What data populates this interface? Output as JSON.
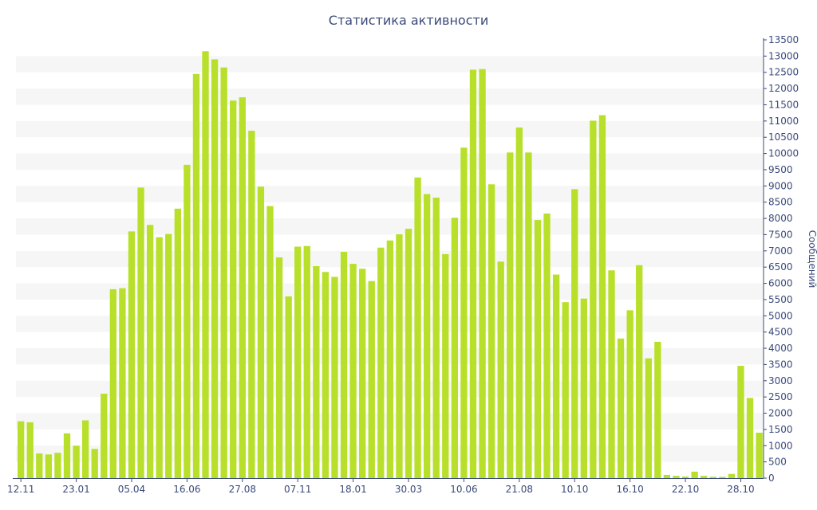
{
  "chart_data": {
    "type": "bar",
    "title": "Статистика активности",
    "ylabel": "Сообщений",
    "xlabel": "",
    "ylim": [
      0,
      13500
    ],
    "y_ticks": [
      0,
      500,
      1000,
      1500,
      2000,
      2500,
      3000,
      3500,
      4000,
      4500,
      5000,
      5500,
      6000,
      6500,
      7000,
      7500,
      8000,
      8500,
      9000,
      9500,
      10000,
      10500,
      11000,
      11500,
      12000,
      12500,
      13000,
      13500
    ],
    "y_axis_position": "right",
    "x_tick_labels": [
      "12.11",
      "23.01",
      "05.04",
      "16.06",
      "27.08",
      "07.11",
      "18.01",
      "30.03",
      "10.06",
      "21.08",
      "10.10",
      "16.10",
      "22.10",
      "28.10"
    ],
    "x_tick_bar_index": [
      0,
      6,
      12,
      18,
      24,
      30,
      36,
      42,
      48,
      54,
      60,
      66,
      72,
      78
    ],
    "bar_color": "#b8e02a",
    "grid": "alternating horizontal bands",
    "values": [
      1750,
      1720,
      760,
      730,
      780,
      1380,
      1000,
      1780,
      900,
      2600,
      5820,
      5850,
      7600,
      8950,
      7800,
      7420,
      7520,
      8300,
      9650,
      12450,
      13150,
      12900,
      12650,
      11630,
      11730,
      10700,
      8980,
      8380,
      6800,
      5600,
      7130,
      7150,
      6530,
      6350,
      6200,
      6970,
      6600,
      6450,
      6070,
      7100,
      7320,
      7510,
      7680,
      9260,
      8750,
      8640,
      6900,
      8020,
      10180,
      12580,
      12600,
      9050,
      6670,
      10030,
      10800,
      10030,
      7950,
      8150,
      6270,
      5420,
      8900,
      5530,
      11010,
      11180,
      6400,
      4300,
      5170,
      6560,
      3690,
      4200,
      100,
      70,
      50,
      200,
      70,
      40,
      40,
      130,
      3460,
      2470,
      1400
    ]
  }
}
